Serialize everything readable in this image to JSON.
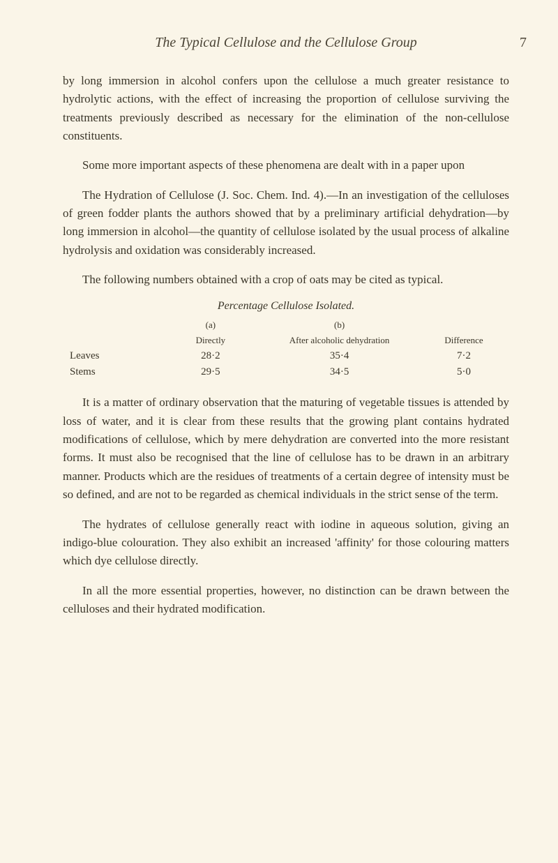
{
  "header": {
    "title": "The Typical Cellulose and the Cellulose Group",
    "pageNumber": "7"
  },
  "paragraphs": {
    "p1": "by long immersion in alcohol confers upon the cellulose a much greater resistance to hydrolytic actions, with the effect of increasing the proportion of cellulose surviving the treatments previously described as necessary for the elimination of the non-cellulose constituents.",
    "p2": "Some more important aspects of these phenomena are dealt with in a paper upon",
    "p3_prefix": "The Hydration of Cellulose ",
    "p3_ref": "(J. Soc. Chem. Ind. 4).—In an investigation of the celluloses of green fodder plants the authors showed that by a preliminary artificial dehydration—by long immersion in alcohol—the quantity of cellulose isolated by the usual process of alkaline hydrolysis and oxidation was considerably increased.",
    "p4": "The following numbers obtained with a crop of oats may be cited as typical.",
    "p5": "It is a matter of ordinary observation that the maturing of vegetable tissues is attended by loss of water, and it is clear from these results that the growing plant contains hydrated modifications of cellulose, which by mere dehydration are converted into the more resistant forms. It must also be recognised that the line of cellulose has to be drawn in an arbitrary manner. Products which are the residues of treatments of a certain degree of intensity must be so defined, and are not to be regarded as chemical individuals in the strict sense of the term.",
    "p6": "The hydrates of cellulose generally react with iodine in aqueous solution, giving an indigo-blue colouration. They also exhibit an increased 'affinity' for those colouring matters which dye cellulose directly.",
    "p7": "In all the more essential properties, however, no distinction can be drawn between the celluloses and their hydrated modification."
  },
  "table": {
    "title": "Percentage Cellulose Isolated.",
    "headerRow1": {
      "a": "(a)",
      "b": "(b)"
    },
    "headerRow2": {
      "a": "Directly",
      "b": "After alcoholic dehydration",
      "diff": "Difference"
    },
    "rows": [
      {
        "label": "Leaves",
        "a": "28·2",
        "b": "35·4",
        "diff": "7·2"
      },
      {
        "label": "Stems",
        "a": "29·5",
        "b": "34·5",
        "diff": "5·0"
      }
    ]
  }
}
